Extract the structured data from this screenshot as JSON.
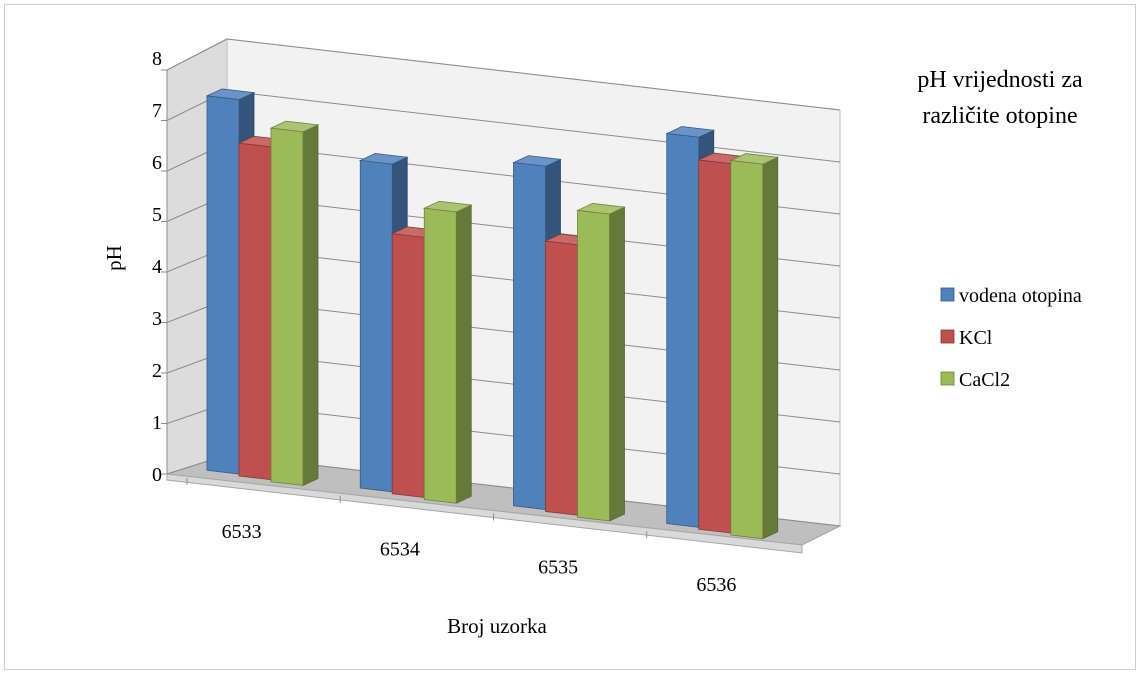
{
  "chart_data": {
    "type": "bar",
    "title": "pH vrijednosti za različite otopine",
    "title_lines": [
      "pH vrijednosti za",
      "različite otopine"
    ],
    "xlabel": "Broj uzorka",
    "ylabel": "pH",
    "categories": [
      "6533",
      "6534",
      "6535",
      "6536"
    ],
    "ylim": [
      0,
      8
    ],
    "yticks": [
      "0",
      "1",
      "2",
      "3",
      "4",
      "5",
      "6",
      "7",
      "8"
    ],
    "grid": true,
    "legend_position": "right",
    "series": [
      {
        "name": "vodena otopina",
        "values": [
          7.2,
          6.3,
          6.6,
          7.5
        ],
        "color": "#4F81BD"
      },
      {
        "name": "KCl",
        "values": [
          6.4,
          5.0,
          5.2,
          7.1
        ],
        "color": "#C0504D"
      },
      {
        "name": "CaCl2",
        "values": [
          6.8,
          5.6,
          5.9,
          7.2
        ],
        "color": "#9BBB59"
      }
    ]
  }
}
